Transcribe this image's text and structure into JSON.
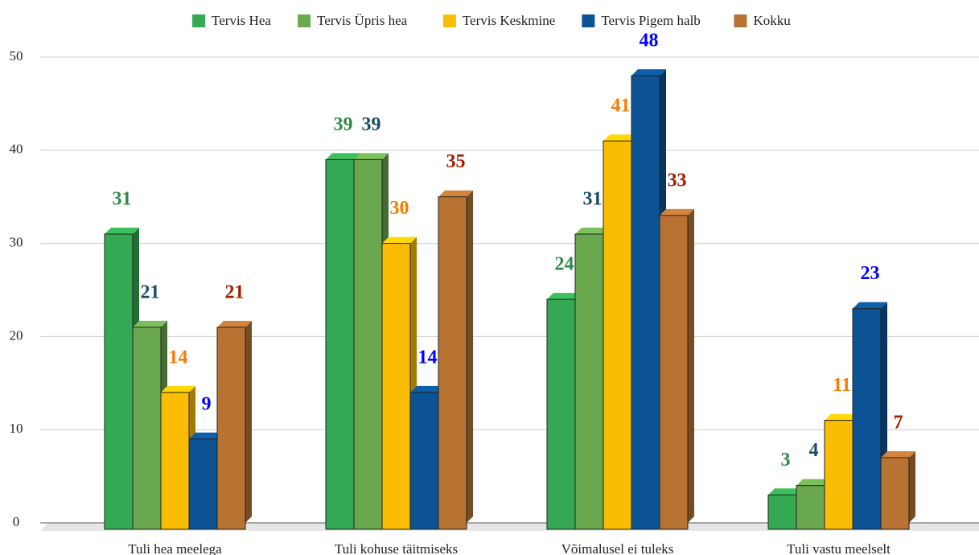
{
  "chart_data": {
    "type": "bar3d",
    "categories": [
      "Tuli hea meelega",
      "Tuli kohuse täitmiseks",
      "Võimalusel ei tuleks",
      "Tuli vastu meelselt"
    ],
    "series": [
      {
        "name": "Tervis Hea",
        "color": "#34a853",
        "label_color": "#2e8b47",
        "values": [
          31,
          39,
          24,
          3
        ]
      },
      {
        "name": "Tervis Üpris hea",
        "color": "#6aa84f",
        "label_color": "#1c4e63",
        "values": [
          21,
          39,
          31,
          4
        ]
      },
      {
        "name": "Tervis Keskmine",
        "color": "#fbbc04",
        "label_color": "#f57c00",
        "values": [
          14,
          30,
          41,
          11
        ]
      },
      {
        "name": "Tervis Pigem halb",
        "color": "#0b5394",
        "label_color": "#0000ff",
        "values": [
          9,
          14,
          48,
          23
        ]
      },
      {
        "name": "Kokku",
        "color": "#b87333",
        "label_color": "#a61c00",
        "values": [
          21,
          35,
          33,
          7
        ]
      }
    ],
    "ylim": [
      0,
      50
    ],
    "yticks": [
      0,
      10,
      20,
      30,
      40,
      50
    ],
    "grid": true,
    "legend": "top"
  }
}
